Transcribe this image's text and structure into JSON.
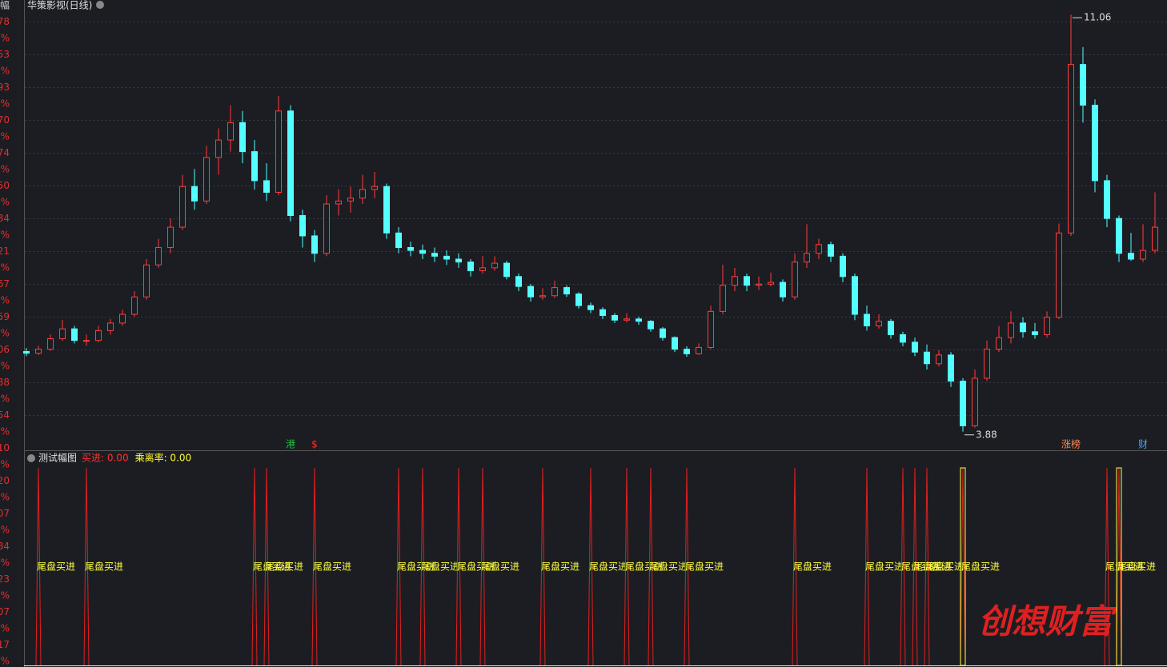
{
  "left_axis_labels": [
    "幅",
    "78",
    "%",
    "53",
    "%",
    "93",
    "%",
    "70",
    "%",
    "74",
    "%",
    "50",
    "%",
    "34",
    "%",
    "21",
    "%",
    "67",
    "%",
    "59",
    "%",
    "06",
    "%",
    "88",
    "%",
    "54",
    "%",
    "10",
    "%",
    "20",
    "%",
    "07",
    "%",
    "84",
    "%",
    "23",
    "%",
    "07",
    "%",
    "17",
    "%"
  ],
  "watermark": "创想财富",
  "chart_data": [
    {
      "type": "candlestick",
      "title": "华策影视(日线)",
      "ylim": [
        3.56,
        11.31
      ],
      "up_color": "#ff3c3c",
      "down_color": "#54ffff",
      "ohlc": [
        [
          5.26,
          5.32,
          5.18,
          5.23
        ],
        [
          5.23,
          5.36,
          5.2,
          5.3
        ],
        [
          5.3,
          5.55,
          5.27,
          5.48
        ],
        [
          5.48,
          5.8,
          5.44,
          5.65
        ],
        [
          5.65,
          5.7,
          5.4,
          5.45
        ],
        [
          5.45,
          5.55,
          5.36,
          5.45
        ],
        [
          5.45,
          5.7,
          5.42,
          5.62
        ],
        [
          5.62,
          5.82,
          5.55,
          5.75
        ],
        [
          5.75,
          5.98,
          5.7,
          5.9
        ],
        [
          5.9,
          6.3,
          5.86,
          6.2
        ],
        [
          6.2,
          6.85,
          6.15,
          6.75
        ],
        [
          6.75,
          7.2,
          6.7,
          7.05
        ],
        [
          7.05,
          7.55,
          6.95,
          7.4
        ],
        [
          7.4,
          8.3,
          7.35,
          8.1
        ],
        [
          8.1,
          8.4,
          7.7,
          7.85
        ],
        [
          7.85,
          8.8,
          7.8,
          8.6
        ],
        [
          8.6,
          9.1,
          8.3,
          8.9
        ],
        [
          8.9,
          9.5,
          8.7,
          9.2
        ],
        [
          9.2,
          9.4,
          8.5,
          8.7
        ],
        [
          8.7,
          8.9,
          8.05,
          8.2
        ],
        [
          8.2,
          8.5,
          7.85,
          8.0
        ],
        [
          8.0,
          9.66,
          7.95,
          9.4
        ],
        [
          9.4,
          9.5,
          7.5,
          7.6
        ],
        [
          7.6,
          7.7,
          7.05,
          7.25
        ],
        [
          7.25,
          7.35,
          6.8,
          6.95
        ],
        [
          6.95,
          7.95,
          6.9,
          7.8
        ],
        [
          7.8,
          8.05,
          7.6,
          7.85
        ],
        [
          7.85,
          8.1,
          7.65,
          7.9
        ],
        [
          7.9,
          8.3,
          7.8,
          8.05
        ],
        [
          8.05,
          8.35,
          7.9,
          8.1
        ],
        [
          8.1,
          8.15,
          7.2,
          7.3
        ],
        [
          7.3,
          7.4,
          6.95,
          7.05
        ],
        [
          7.05,
          7.15,
          6.9,
          7.0
        ],
        [
          7.0,
          7.1,
          6.85,
          6.95
        ],
        [
          6.95,
          7.05,
          6.8,
          6.9
        ],
        [
          6.9,
          7.0,
          6.75,
          6.85
        ],
        [
          6.85,
          6.95,
          6.7,
          6.8
        ],
        [
          6.8,
          6.85,
          6.55,
          6.65
        ],
        [
          6.65,
          6.9,
          6.6,
          6.7
        ],
        [
          6.7,
          6.9,
          6.65,
          6.78
        ],
        [
          6.78,
          6.82,
          6.5,
          6.55
        ],
        [
          6.55,
          6.6,
          6.3,
          6.38
        ],
        [
          6.38,
          6.42,
          6.12,
          6.2
        ],
        [
          6.2,
          6.35,
          6.15,
          6.22
        ],
        [
          6.22,
          6.48,
          6.18,
          6.36
        ],
        [
          6.36,
          6.4,
          6.2,
          6.25
        ],
        [
          6.25,
          6.28,
          6.0,
          6.05
        ],
        [
          6.05,
          6.1,
          5.92,
          5.98
        ],
        [
          5.98,
          6.02,
          5.82,
          5.88
        ],
        [
          5.88,
          5.92,
          5.75,
          5.8
        ],
        [
          5.8,
          5.92,
          5.76,
          5.82
        ],
        [
          5.82,
          5.86,
          5.72,
          5.78
        ],
        [
          5.78,
          5.8,
          5.6,
          5.65
        ],
        [
          5.65,
          5.68,
          5.45,
          5.5
        ],
        [
          5.5,
          5.52,
          5.25,
          5.3
        ],
        [
          5.3,
          5.35,
          5.17,
          5.22
        ],
        [
          5.22,
          5.4,
          5.2,
          5.33
        ],
        [
          5.33,
          6.05,
          5.3,
          5.95
        ],
        [
          5.95,
          6.75,
          5.9,
          6.4
        ],
        [
          6.4,
          6.7,
          6.3,
          6.55
        ],
        [
          6.55,
          6.6,
          6.3,
          6.4
        ],
        [
          6.4,
          6.55,
          6.32,
          6.42
        ],
        [
          6.42,
          6.62,
          6.38,
          6.45
        ],
        [
          6.45,
          6.5,
          6.12,
          6.2
        ],
        [
          6.2,
          6.95,
          6.15,
          6.8
        ],
        [
          6.8,
          7.45,
          6.7,
          6.95
        ],
        [
          6.95,
          7.2,
          6.85,
          7.1
        ],
        [
          7.1,
          7.15,
          6.8,
          6.9
        ],
        [
          6.9,
          6.95,
          6.45,
          6.55
        ],
        [
          6.55,
          6.6,
          5.8,
          5.9
        ],
        [
          5.9,
          6.05,
          5.62,
          5.7
        ],
        [
          5.7,
          5.9,
          5.65,
          5.78
        ],
        [
          5.78,
          5.82,
          5.48,
          5.55
        ],
        [
          5.55,
          5.6,
          5.35,
          5.42
        ],
        [
          5.42,
          5.5,
          5.18,
          5.25
        ],
        [
          5.25,
          5.38,
          4.95,
          5.05
        ],
        [
          5.05,
          5.28,
          5.0,
          5.2
        ],
        [
          5.2,
          5.25,
          4.65,
          4.75
        ],
        [
          4.75,
          4.8,
          3.88,
          3.98
        ],
        [
          3.98,
          4.95,
          3.95,
          4.8
        ],
        [
          4.8,
          5.45,
          4.75,
          5.3
        ],
        [
          5.3,
          5.7,
          5.25,
          5.5
        ],
        [
          5.5,
          5.95,
          5.4,
          5.75
        ],
        [
          5.75,
          5.85,
          5.5,
          5.6
        ],
        [
          5.6,
          5.75,
          5.48,
          5.55
        ],
        [
          5.55,
          5.95,
          5.5,
          5.85
        ],
        [
          5.85,
          7.46,
          5.82,
          7.3
        ],
        [
          7.3,
          11.06,
          7.25,
          10.2
        ],
        [
          10.2,
          10.5,
          9.2,
          9.5
        ],
        [
          9.5,
          9.6,
          8.0,
          8.2
        ],
        [
          8.2,
          8.3,
          7.4,
          7.55
        ],
        [
          7.55,
          7.6,
          6.8,
          6.95
        ],
        [
          6.95,
          7.3,
          6.82,
          6.85
        ],
        [
          6.85,
          7.45,
          6.8,
          7.0
        ],
        [
          7.0,
          8.0,
          6.95,
          7.4
        ]
      ],
      "annotations": [
        {
          "bar": 87,
          "value": 11.06
        },
        {
          "bar": 78,
          "value": 3.88
        }
      ],
      "events": [
        {
          "bar": 22,
          "label": "港",
          "color": "#20c040"
        },
        {
          "bar": 24,
          "label": "$",
          "color": "#ff3030"
        },
        {
          "bar": 87,
          "label": "涨榜",
          "color": "#ff8a50"
        },
        {
          "bar": 93,
          "label": "财",
          "color": "#4aa0ff"
        }
      ]
    },
    {
      "type": "signals",
      "title": "测试幅图",
      "legend": [
        "买进: 0.00",
        "乘离率: 0.00"
      ],
      "legend_colors": [
        "#ff3030",
        "#ffff30"
      ],
      "signal_label": "尾盘买进",
      "signal_color": "#e02020",
      "signal_bars": [
        1,
        5,
        19,
        20,
        24,
        31,
        33,
        36,
        38,
        43,
        47,
        50,
        52,
        55,
        64,
        70,
        73,
        74,
        75,
        78,
        90,
        91
      ],
      "highlight_bars": [
        78,
        91
      ],
      "highlight_color": "#ffff40"
    }
  ]
}
